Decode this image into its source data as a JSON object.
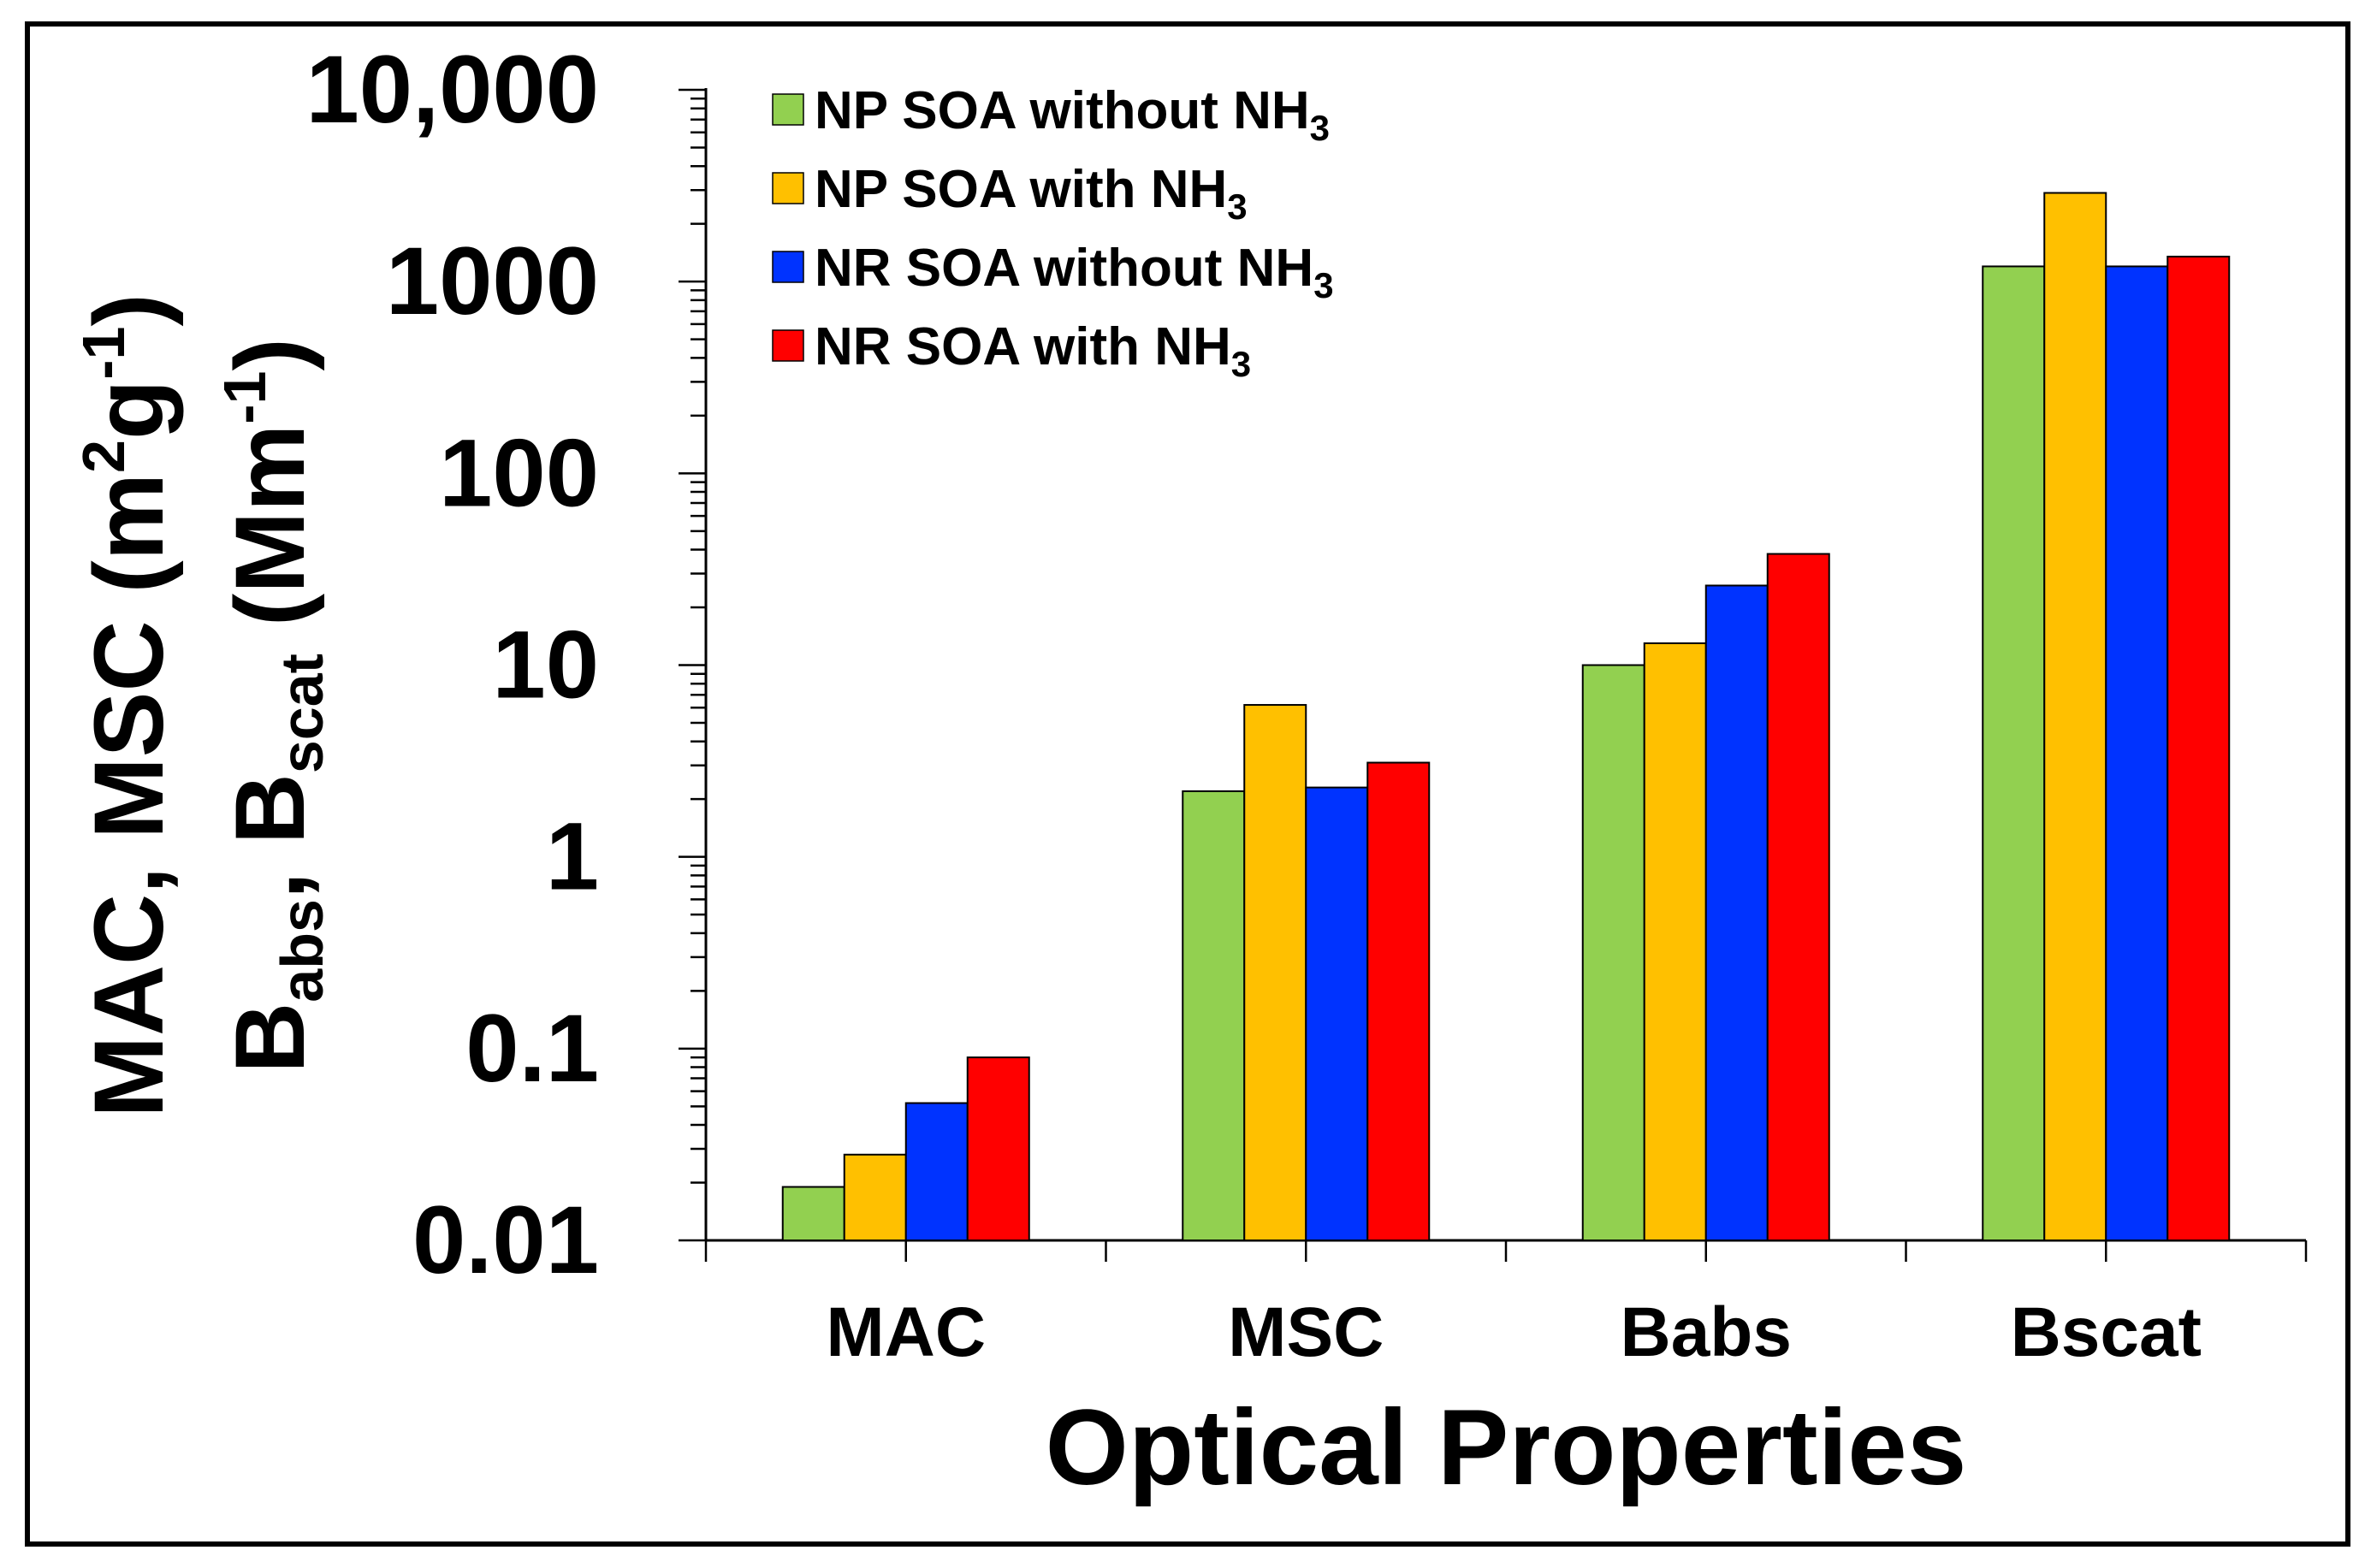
{
  "chart_data": {
    "type": "bar",
    "scale": "log",
    "categories": [
      "MAC",
      "MSC",
      "Babs",
      "Bscat"
    ],
    "series": [
      {
        "name": "NP SOA without NH3",
        "label_main": "NP SOA without NH",
        "label_sub": "3",
        "color": "#92D050",
        "values": [
          0.019,
          2.2,
          10,
          1200
        ]
      },
      {
        "name": "NP SOA with NH3",
        "label_main": "NP SOA with NH",
        "label_sub": "3",
        "color": "#FFC000",
        "values": [
          0.028,
          6.2,
          13,
          2900
        ]
      },
      {
        "name": "NR SOA without NH3",
        "label_main": "NR SOA without NH",
        "label_sub": "3",
        "color": "#0033FF",
        "values": [
          0.052,
          2.3,
          26,
          1200
        ]
      },
      {
        "name": "NR SOA with NH3",
        "label_main": "NR SOA with NH",
        "label_sub": "3",
        "color": "#FF0000",
        "values": [
          0.09,
          3.1,
          38,
          1350
        ]
      }
    ],
    "ylim": [
      0.01,
      10000
    ],
    "yticks": [
      {
        "value": 10000,
        "label": "10,000"
      },
      {
        "value": 1000,
        "label": "1000"
      },
      {
        "value": 100,
        "label": "100"
      },
      {
        "value": 10,
        "label": "10"
      },
      {
        "value": 1,
        "label": "1"
      },
      {
        "value": 0.1,
        "label": "0.1"
      },
      {
        "value": 0.01,
        "label": "0.01"
      }
    ],
    "xlabel": "Optical Properties",
    "ylabel": {
      "line1_main": "MAC, MSC (m",
      "line1_sup1": "2",
      "line1_mid": "g",
      "line1_sup2": "-1",
      "line1_end": ")",
      "line2_B1": "B",
      "line2_sub1": "abs",
      "line2_mid": ", B",
      "line2_sub2": "scat",
      "line2_main": " (Mm",
      "line2_sup": "-1",
      "line2_end": ")"
    },
    "legend_position": "top-left",
    "grid": false
  }
}
